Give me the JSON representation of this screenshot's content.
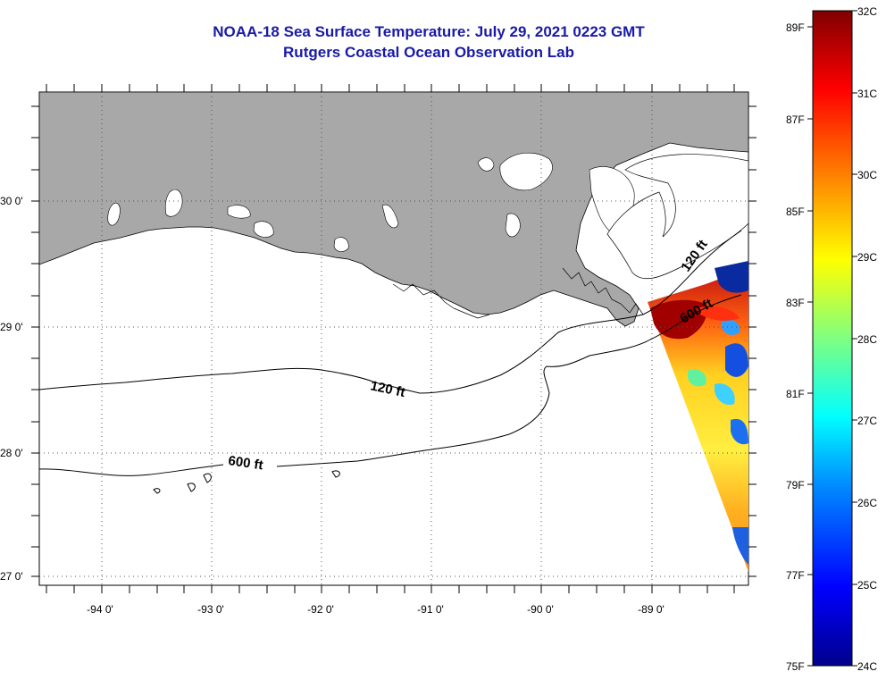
{
  "title": {
    "line1": "NOAA-18 Sea Surface Temperature:  July 29, 2021 0223 GMT",
    "line2": "Rutgers Coastal Ocean Observation Lab"
  },
  "map": {
    "lat_labels": [
      "30 0'",
      "29 0'",
      "28 0'",
      "27 0'"
    ],
    "lon_labels": [
      "-94 0'",
      "-93 0'",
      "-92 0'",
      "-91 0'",
      "-90 0'",
      "-89 0'"
    ],
    "contours": [
      {
        "depth": "120 ft"
      },
      {
        "depth": "600 ft"
      }
    ],
    "colors": {
      "land": "#a8a8a8",
      "water": "#ffffff",
      "grid": "#555555"
    }
  },
  "colorbar": {
    "fahrenheit": [
      "89F",
      "87F",
      "85F",
      "83F",
      "81F",
      "79F",
      "77F",
      "75F"
    ],
    "celsius": [
      "32C",
      "31C",
      "30C",
      "29C",
      "28C",
      "27C",
      "26C",
      "25C",
      "24C"
    ],
    "gradient": [
      "#00008c",
      "#0000ff",
      "#0080ff",
      "#00ffff",
      "#80ff80",
      "#ffff00",
      "#ff8000",
      "#ff0000",
      "#800000"
    ]
  }
}
